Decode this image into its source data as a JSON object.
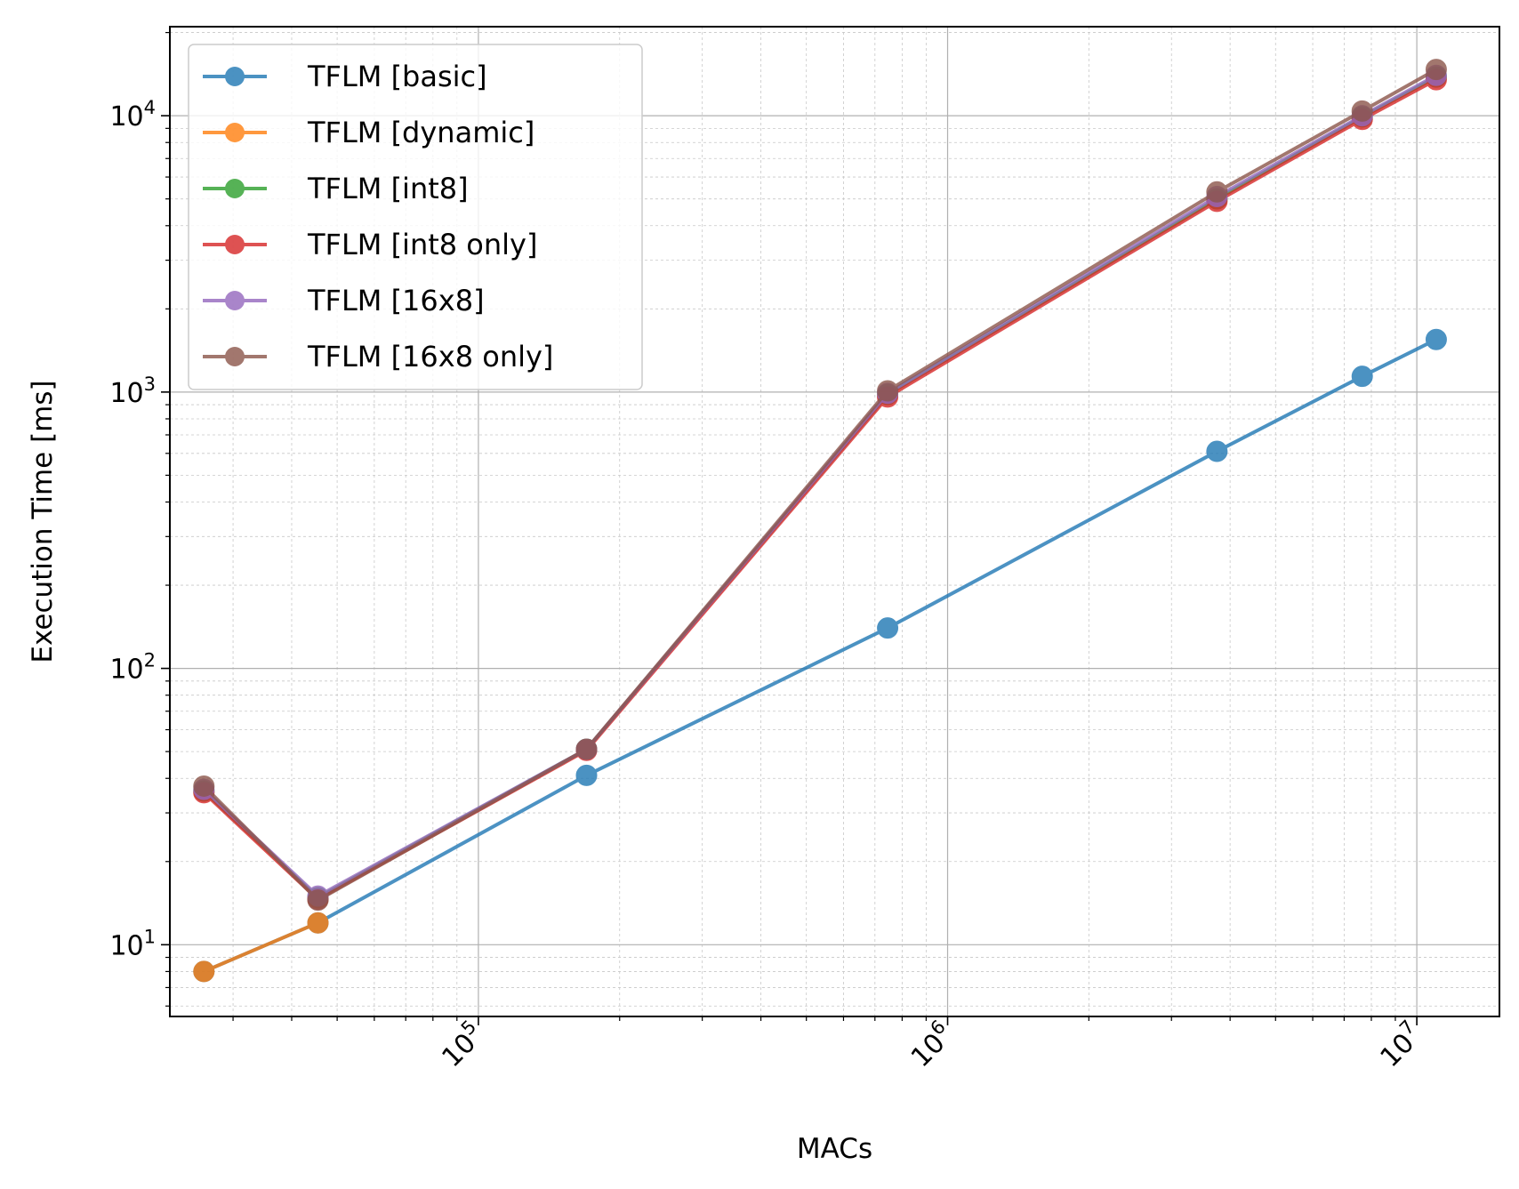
{
  "chart_data": {
    "type": "line",
    "xlabel": "MACs",
    "ylabel": "Execution Time [ms]",
    "xscale": "log",
    "yscale": "log",
    "xlim": [
      22000,
      15000000
    ],
    "ylim": [
      5.5,
      21000
    ],
    "grid": true,
    "legend_position": "upper-left",
    "x_ticks": [
      {
        "value": 100000,
        "base": "10",
        "exp": "5"
      },
      {
        "value": 1000000,
        "base": "10",
        "exp": "6"
      },
      {
        "value": 10000000,
        "base": "10",
        "exp": "7"
      }
    ],
    "y_ticks": [
      {
        "value": 10,
        "base": "10",
        "exp": "1"
      },
      {
        "value": 100,
        "base": "10",
        "exp": "2"
      },
      {
        "value": 1000,
        "base": "10",
        "exp": "3"
      },
      {
        "value": 10000,
        "base": "10",
        "exp": "4"
      }
    ],
    "x": [
      26000,
      45500,
      170000,
      745000,
      3750000,
      7650000,
      11000000
    ],
    "series": [
      {
        "name": "TFLM [basic]",
        "color": "#1f77b4",
        "values": [
          8,
          12,
          41,
          140,
          610,
          1140,
          1550
        ]
      },
      {
        "name": "TFLM [dynamic]",
        "color": "#ff7f0e",
        "values": [
          8,
          12,
          null,
          null,
          null,
          null,
          null
        ]
      },
      {
        "name": "TFLM [int8]",
        "color": "#2ca02c",
        "values": [
          36,
          14.8,
          51,
          980,
          5000,
          9900,
          13800
        ]
      },
      {
        "name": "TFLM [int8 only]",
        "color": "#d62728",
        "values": [
          35.5,
          14.6,
          50.5,
          960,
          4900,
          9700,
          13500
        ]
      },
      {
        "name": "TFLM [16x8]",
        "color": "#9467bd",
        "values": [
          36.5,
          15,
          51,
          990,
          5100,
          10000,
          14000
        ]
      },
      {
        "name": "TFLM [16x8 only]",
        "color": "#8c564b",
        "values": [
          37.5,
          14.5,
          51,
          1010,
          5300,
          10400,
          14700
        ]
      }
    ]
  }
}
